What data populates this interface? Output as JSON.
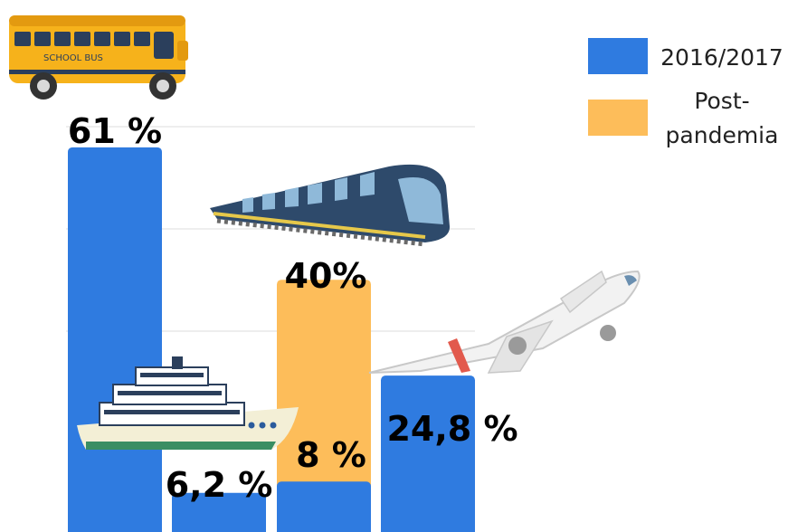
{
  "chart_data": {
    "type": "bar",
    "categories": [
      "School bus",
      "Ferry",
      "Train",
      "Airplane"
    ],
    "series": [
      {
        "name": "2016/2017",
        "color": "#2f7be0",
        "values": [
          61,
          6.2,
          null,
          24.8
        ]
      },
      {
        "name": "Post-pandemia",
        "color": "#fdbd5a",
        "values": [
          null,
          null,
          40,
          null
        ]
      },
      {
        "name": "2016/2017",
        "color": "#2f7be0",
        "values": [
          null,
          null,
          8,
          null
        ]
      }
    ],
    "data_labels": [
      "61 %",
      "6,2 %",
      "40%",
      "8 %",
      "24,8 %"
    ],
    "legend": {
      "placement": "top-right",
      "entries": [
        {
          "label_lines": [
            "2016/2017"
          ],
          "color": "#2f7be0"
        },
        {
          "label_lines": [
            "Post-",
            "pandemia"
          ],
          "color": "#fdbd5a"
        }
      ]
    },
    "ylim": [
      0,
      70
    ],
    "grid": true,
    "icons": [
      "school-bus-icon",
      "ferry-icon",
      "train-icon",
      "airplane-icon"
    ],
    "icon_labels": {
      "bus_text": "SCHOOL BUS"
    }
  }
}
